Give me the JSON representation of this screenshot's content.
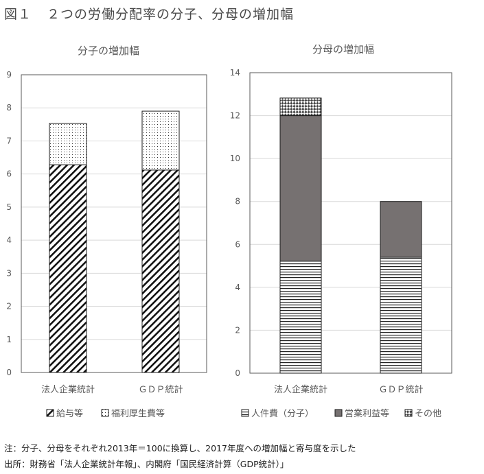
{
  "figure": {
    "number": "図１",
    "title": "２つの労働分配率の分子、分母の増加幅",
    "note": "注：分子、分母をそれぞれ2013年＝100に換算し、2017年度への増加幅と寄与度を示した",
    "source": "出所：財務省「法人企業統計年報」、内閣府「国民経済計算（GDP統計）」"
  },
  "chart_data": [
    {
      "type": "bar",
      "stacked": true,
      "title": "分子の増加幅",
      "categories": [
        "法人企業統計",
        "ＧＤＰ統計"
      ],
      "series": [
        {
          "name": "給与等",
          "values": [
            6.28,
            6.12
          ],
          "pattern": "diagonal-hatch"
        },
        {
          "name": "福利厚生費等",
          "values": [
            1.25,
            1.78
          ],
          "pattern": "dots"
        }
      ],
      "ylim": [
        0,
        9
      ],
      "yticks": [
        "0",
        "1",
        "2",
        "3",
        "4",
        "5",
        "6",
        "7",
        "8",
        "9"
      ],
      "grid": true,
      "legend": "bottom"
    },
    {
      "type": "bar",
      "stacked": true,
      "title": "分母の増加幅",
      "categories": [
        "法人企業統計",
        "ＧＤＰ統計"
      ],
      "series": [
        {
          "name": "人件費（分子）",
          "values": [
            5.22,
            5.4
          ],
          "pattern": "horizontal-lines"
        },
        {
          "name": "営業利益等",
          "values": [
            6.78,
            2.6
          ],
          "pattern": "solid-gray"
        },
        {
          "name": "その他",
          "values": [
            0.82,
            0
          ],
          "pattern": "checker"
        }
      ],
      "ylim": [
        0,
        14
      ],
      "yticks": [
        "0",
        "2",
        "4",
        "6",
        "8",
        "10",
        "12",
        "14"
      ],
      "grid": true,
      "legend": "bottom"
    }
  ],
  "colors": {
    "gridline": "#d9d9d9",
    "frame": "#595959",
    "bar_stroke": "#1a1a1a",
    "solid_fill": "#767171",
    "text": "#595959"
  }
}
